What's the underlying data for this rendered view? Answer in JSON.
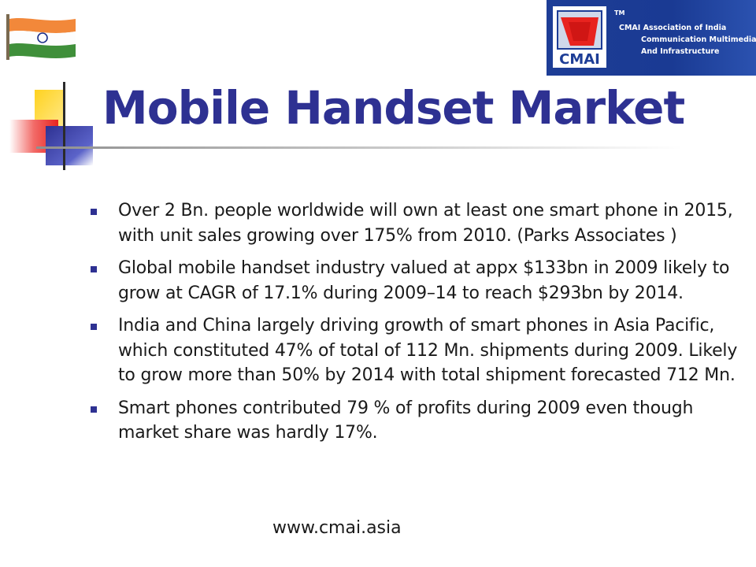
{
  "slide": {
    "title": "Mobile Handset Market",
    "bullets": [
      "Over 2 Bn. people worldwide will own at least one smart phone in 2015, with unit sales growing over 175% from 2010. (Parks Associates )",
      "Global mobile handset industry  valued at appx $133bn in 2009 likely to grow at CAGR of 17.1% during 2009–14 to reach $293bn by 2014.",
      "India and China largely driving growth of smart phones in Asia Pacific, which constituted 47% of total of 112 Mn. shipments during 2009. Likely to grow more than 50% by 2014 with total shipment forecasted 712 Mn.",
      "Smart phones contributed 79 % of profits during 2009 even though market share was hardly 17%."
    ],
    "footer": "www.cmai.asia"
  },
  "logo": {
    "mark_text": "CMAI",
    "tm": "TM",
    "line1": "CMAI Association of India",
    "line2": "Communication Multimedia",
    "line3": "And Infrastructure"
  },
  "colors": {
    "title": "#2e3192",
    "bullet": "#2e3192",
    "logo_background": "#1d3d96",
    "accent_red": "#e8231f",
    "accent_yellow": "#ffd21f"
  },
  "icons": {
    "flag": "indian-flag-icon",
    "logo": "cmai-logo-mark",
    "decoration": "title-squares-decoration"
  }
}
